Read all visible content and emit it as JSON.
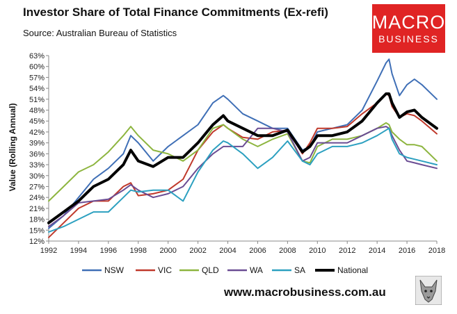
{
  "header": {
    "title": "Investor Share of Total Finance Commitments (Ex-refi)",
    "source": "Source: Australian Bureau of Statistics"
  },
  "logo": {
    "line1": "MACRO",
    "line2": "BUSINESS",
    "color": "#e02424",
    "icon": "macrobusiness-logo"
  },
  "footer": {
    "website": "www.macrobusiness.com.au",
    "mascot_icon": "wolf-mascot-icon"
  },
  "chart_data": {
    "type": "line",
    "title": "Investor Share of Total Finance Commitments (Ex-refi)",
    "subtitle": "Source: Australian Bureau of Statistics",
    "xlabel": "",
    "ylabel": "Value (Rolling Annual)",
    "xlim": [
      1992,
      2018
    ],
    "ylim": [
      12,
      63
    ],
    "x_ticks": [
      "1992",
      "1994",
      "1996",
      "1998",
      "2000",
      "2002",
      "2004",
      "2006",
      "2008",
      "2010",
      "2012",
      "2014",
      "2016",
      "2018"
    ],
    "y_ticks": [
      "12%",
      "15%",
      "18%",
      "21%",
      "24%",
      "27%",
      "30%",
      "33%",
      "36%",
      "39%",
      "42%",
      "45%",
      "48%",
      "51%",
      "54%",
      "57%",
      "60%",
      "63%"
    ],
    "grid": false,
    "legend_position": "bottom",
    "x": [
      1992,
      1993,
      1994,
      1995,
      1996,
      1997,
      1997.5,
      1998,
      1999,
      2000,
      2001,
      2002,
      2003,
      2003.7,
      2004,
      2005,
      2006,
      2007,
      2008,
      2009,
      2009.5,
      2010,
      2011,
      2012,
      2013,
      2014,
      2014.6,
      2014.8,
      2015,
      2015.5,
      2016,
      2016.5,
      2017,
      2018
    ],
    "series": [
      {
        "name": "NSW",
        "color": "#3f6fb6",
        "width": 2,
        "values": [
          15.5,
          19,
          24,
          29,
          32,
          36,
          41,
          39,
          34,
          38,
          41,
          44,
          50,
          52,
          51,
          47,
          45,
          43,
          43,
          37,
          38,
          42,
          43,
          44,
          48,
          56,
          61,
          62,
          58,
          52,
          55,
          56.5,
          55,
          51
        ]
      },
      {
        "name": "VIC",
        "color": "#c0392b",
        "width": 2,
        "values": [
          13,
          17,
          21,
          23,
          23,
          27,
          28,
          24.5,
          25,
          26,
          29,
          37,
          42,
          44,
          43,
          40.5,
          40,
          42,
          42.5,
          36,
          39,
          43,
          43,
          43.5,
          47,
          50,
          52.5,
          52,
          49,
          46,
          47,
          46.5,
          45,
          41.5
        ]
      },
      {
        "name": "QLD",
        "color": "#8db53f",
        "width": 2,
        "values": [
          23,
          27,
          31,
          33,
          36.5,
          41,
          43.5,
          41,
          37,
          36,
          34,
          37,
          43,
          44,
          43,
          40,
          38,
          40,
          41.5,
          34,
          33.5,
          38,
          40,
          40,
          41,
          43,
          44.5,
          44,
          42,
          40,
          38.5,
          38.5,
          38,
          34
        ]
      },
      {
        "name": "WA",
        "color": "#6a4c93",
        "width": 2,
        "values": [
          16,
          19,
          22.5,
          23,
          23.5,
          26,
          27.5,
          26,
          24,
          25,
          27,
          32,
          36,
          38,
          38,
          38,
          43,
          43,
          42,
          34,
          35,
          39,
          39,
          39,
          41,
          43,
          43.5,
          43,
          41,
          37,
          34,
          33.5,
          33,
          32
        ]
      },
      {
        "name": "SA",
        "color": "#2ca0c0",
        "width": 2,
        "values": [
          14.5,
          16,
          18,
          20,
          20,
          24,
          26,
          25.5,
          26,
          26,
          23,
          31,
          37,
          39.5,
          39,
          36,
          32,
          35,
          39.5,
          34,
          33,
          36,
          38,
          38,
          39,
          41,
          42.5,
          43,
          40,
          36,
          35,
          34.5,
          34,
          33
        ]
      },
      {
        "name": "National",
        "color": "#000000",
        "width": 4,
        "values": [
          17,
          20,
          23,
          27,
          29,
          33,
          37,
          34,
          32.5,
          35,
          35,
          39,
          44,
          46.5,
          45,
          43,
          41,
          41,
          42.5,
          36.5,
          38,
          41,
          41,
          42,
          45,
          50,
          52.5,
          52.5,
          50,
          46,
          47.5,
          48,
          46,
          43
        ]
      }
    ]
  }
}
